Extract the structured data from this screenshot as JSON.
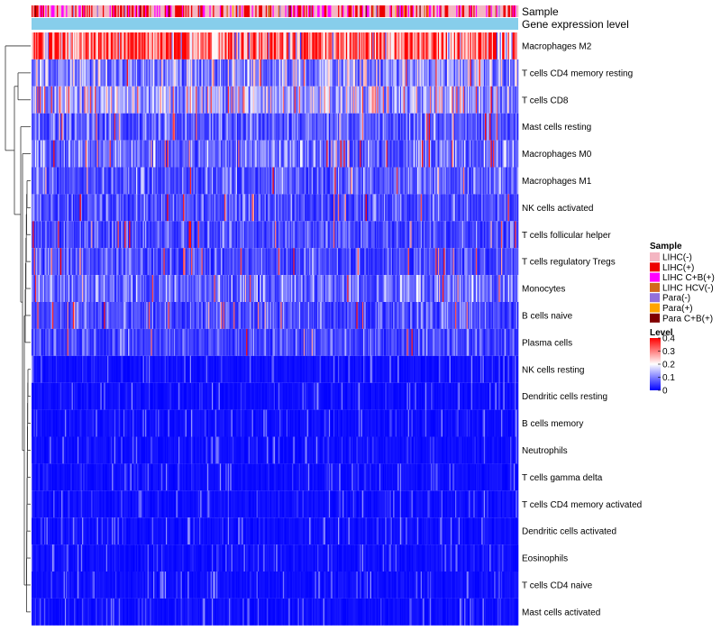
{
  "chart_data": {
    "type": "heatmap",
    "title": "",
    "annotation_tracks": [
      "Sample",
      "Gene expression level"
    ],
    "rows": [
      "Macrophages M2",
      "T cells CD4 memory resting",
      "T cells CD8",
      "Mast cells resting",
      "Macrophages M0",
      "Macrophages M1",
      "NK cells activated",
      "T cells follicular helper",
      "T cells regulatory  Tregs",
      "Monocytes",
      "B cells naive",
      "Plasma cells",
      "NK cells resting",
      "Dendritic cells resting",
      "B cells memory",
      "Neutrophils",
      "T cells gamma delta",
      "T cells CD4 memory activated",
      "Dendritic cells activated",
      "Eosinophils",
      "T cells CD4 naive",
      "Mast cells activated"
    ],
    "approx_row_mean_level": [
      0.33,
      0.09,
      0.12,
      0.06,
      0.07,
      0.06,
      0.05,
      0.05,
      0.05,
      0.07,
      0.05,
      0.05,
      0.03,
      0.03,
      0.02,
      0.02,
      0.01,
      0.01,
      0.01,
      0.01,
      0.01,
      0.01
    ],
    "num_samples": 424,
    "legend_sample": {
      "title": "Sample",
      "entries": [
        {
          "label": "LIHC(-)",
          "color": "#f4b6c2"
        },
        {
          "label": "LIHC(+)",
          "color": "#ee0000"
        },
        {
          "label": "LIHC C+B(+)",
          "color": "#ff00ff"
        },
        {
          "label": "LIHC HCV(-)",
          "color": "#d2691e"
        },
        {
          "label": "Para(-)",
          "color": "#9370db"
        },
        {
          "label": "Para(+)",
          "color": "#ffa500"
        },
        {
          "label": "Para C+B(+)",
          "color": "#800000"
        }
      ]
    },
    "legend_level": {
      "title": "Level",
      "ticks": [
        "0.4",
        "0.3",
        "0.2",
        "0.1",
        "0"
      ],
      "tick_values": [
        0.4,
        0.3,
        0.2,
        0.1,
        0
      ],
      "range": [
        0,
        0.4
      ]
    },
    "colors": {
      "low": "#0000ff",
      "mid": "#ffffff",
      "high": "#ff0000",
      "gene_expression_track": "#87ceeb"
    }
  }
}
